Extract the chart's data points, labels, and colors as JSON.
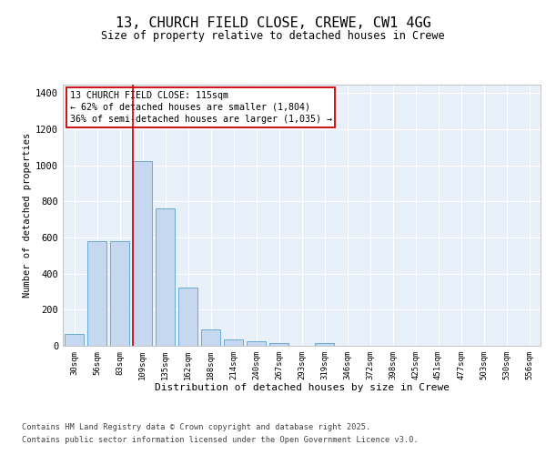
{
  "title_line1": "13, CHURCH FIELD CLOSE, CREWE, CW1 4GG",
  "title_line2": "Size of property relative to detached houses in Crewe",
  "xlabel": "Distribution of detached houses by size in Crewe",
  "ylabel": "Number of detached properties",
  "bar_color": "#c5d8f0",
  "bar_edge_color": "#6aaad4",
  "bg_color": "#e8f0fa",
  "grid_color": "#ffffff",
  "categories": [
    "30sqm",
    "56sqm",
    "83sqm",
    "109sqm",
    "135sqm",
    "162sqm",
    "188sqm",
    "214sqm",
    "240sqm",
    "267sqm",
    "293sqm",
    "319sqm",
    "346sqm",
    "372sqm",
    "398sqm",
    "425sqm",
    "451sqm",
    "477sqm",
    "503sqm",
    "530sqm",
    "556sqm"
  ],
  "values": [
    65,
    580,
    580,
    1025,
    760,
    325,
    93,
    37,
    25,
    15,
    0,
    15,
    0,
    0,
    0,
    0,
    0,
    0,
    0,
    0,
    0
  ],
  "annotation_text": "13 CHURCH FIELD CLOSE: 115sqm\n← 62% of detached houses are smaller (1,804)\n36% of semi-detached houses are larger (1,035) →",
  "annotation_box_color": "#ffffff",
  "annotation_box_edge": "#cc0000",
  "red_line_color": "#cc0000",
  "ylim": [
    0,
    1450
  ],
  "yticks": [
    0,
    200,
    400,
    600,
    800,
    1000,
    1200,
    1400
  ],
  "footer_line1": "Contains HM Land Registry data © Crown copyright and database right 2025.",
  "footer_line2": "Contains public sector information licensed under the Open Government Licence v3.0."
}
